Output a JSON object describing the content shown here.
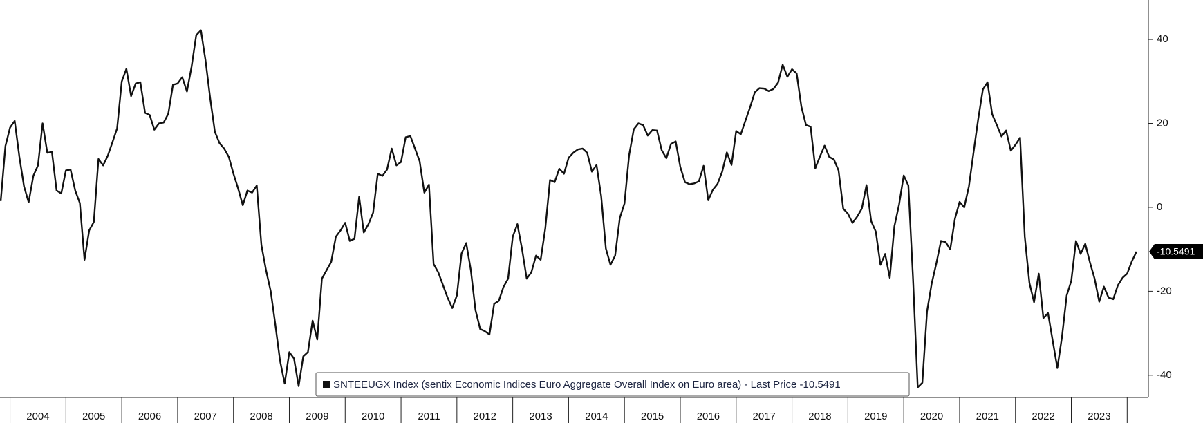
{
  "chart_data": {
    "type": "line",
    "x": [
      2003.833,
      2003.917,
      2004,
      2004.083,
      2004.167,
      2004.25,
      2004.333,
      2004.417,
      2004.5,
      2004.583,
      2004.667,
      2004.75,
      2004.833,
      2004.917,
      2005,
      2005.083,
      2005.167,
      2005.25,
      2005.333,
      2005.417,
      2005.5,
      2005.583,
      2005.667,
      2005.75,
      2005.833,
      2005.917,
      2006,
      2006.083,
      2006.167,
      2006.25,
      2006.333,
      2006.417,
      2006.5,
      2006.583,
      2006.667,
      2006.75,
      2006.833,
      2006.917,
      2007,
      2007.083,
      2007.167,
      2007.25,
      2007.333,
      2007.417,
      2007.5,
      2007.583,
      2007.667,
      2007.75,
      2007.833,
      2007.917,
      2008,
      2008.083,
      2008.167,
      2008.25,
      2008.333,
      2008.417,
      2008.5,
      2008.583,
      2008.667,
      2008.75,
      2008.833,
      2008.917,
      2009,
      2009.083,
      2009.167,
      2009.25,
      2009.333,
      2009.417,
      2009.5,
      2009.583,
      2009.667,
      2009.75,
      2009.833,
      2009.917,
      2010,
      2010.083,
      2010.167,
      2010.25,
      2010.333,
      2010.417,
      2010.5,
      2010.583,
      2010.667,
      2010.75,
      2010.833,
      2010.917,
      2011,
      2011.083,
      2011.167,
      2011.25,
      2011.333,
      2011.417,
      2011.5,
      2011.583,
      2011.667,
      2011.75,
      2011.833,
      2011.917,
      2012,
      2012.083,
      2012.167,
      2012.25,
      2012.333,
      2012.417,
      2012.5,
      2012.583,
      2012.667,
      2012.75,
      2012.833,
      2012.917,
      2013,
      2013.083,
      2013.167,
      2013.25,
      2013.333,
      2013.417,
      2013.5,
      2013.583,
      2013.667,
      2013.75,
      2013.833,
      2013.917,
      2014,
      2014.083,
      2014.167,
      2014.25,
      2014.333,
      2014.417,
      2014.5,
      2014.583,
      2014.667,
      2014.75,
      2014.833,
      2014.917,
      2015,
      2015.083,
      2015.167,
      2015.25,
      2015.333,
      2015.417,
      2015.5,
      2015.583,
      2015.667,
      2015.75,
      2015.833,
      2015.917,
      2016,
      2016.083,
      2016.167,
      2016.25,
      2016.333,
      2016.417,
      2016.5,
      2016.583,
      2016.667,
      2016.75,
      2016.833,
      2016.917,
      2017,
      2017.083,
      2017.167,
      2017.25,
      2017.333,
      2017.417,
      2017.5,
      2017.583,
      2017.667,
      2017.75,
      2017.833,
      2017.917,
      2018,
      2018.083,
      2018.167,
      2018.25,
      2018.333,
      2018.417,
      2018.5,
      2018.583,
      2018.667,
      2018.75,
      2018.833,
      2018.917,
      2019,
      2019.083,
      2019.167,
      2019.25,
      2019.333,
      2019.417,
      2019.5,
      2019.583,
      2019.667,
      2019.75,
      2019.833,
      2019.917,
      2020,
      2020.083,
      2020.167,
      2020.25,
      2020.333,
      2020.417,
      2020.5,
      2020.583,
      2020.667,
      2020.75,
      2020.833,
      2020.917,
      2021,
      2021.083,
      2021.167,
      2021.25,
      2021.333,
      2021.417,
      2021.5,
      2021.583,
      2021.667,
      2021.75,
      2021.833,
      2021.917,
      2022,
      2022.083,
      2022.167,
      2022.25,
      2022.333,
      2022.417,
      2022.5,
      2022.583,
      2022.667,
      2022.75,
      2022.833,
      2022.917,
      2023,
      2023.083,
      2023.167,
      2023.25,
      2023.333,
      2023.417,
      2023.5,
      2023.583,
      2023.667,
      2023.75,
      2023.833,
      2023.917,
      2024,
      2024.083,
      2024.167
    ],
    "series": [
      {
        "name": "SNTEEUGX Index (sentix Economic Indices Euro Aggregate  Overall Index on Euro area) - Last Price -10.5491",
        "color": "#111111",
        "values": [
          1.5,
          14.6,
          19,
          20.6,
          12,
          5,
          1.2,
          7.5,
          10,
          20,
          13,
          13.2,
          4,
          3.3,
          8.8,
          9,
          4,
          1,
          -12.5,
          -5.5,
          -3.5,
          11.5,
          10,
          12.3,
          15.5,
          18.8,
          30,
          33,
          26.5,
          29.5,
          29.8,
          22.5,
          22,
          18.5,
          20,
          20.2,
          22.3,
          29.2,
          29.5,
          31,
          27.6,
          33.5,
          41,
          42.2,
          35,
          26,
          18,
          15.3,
          14,
          12,
          8,
          4.5,
          0.5,
          4,
          3.5,
          5.2,
          -9,
          -15,
          -20,
          -28,
          -36.5,
          -42,
          -34.5,
          -36,
          -42.6,
          -35.5,
          -34.5,
          -27,
          -31.5,
          -17,
          -15,
          -13,
          -7,
          -5.5,
          -3.7,
          -8,
          -7.5,
          2.5,
          -6,
          -4,
          -1.3,
          8,
          7.5,
          9,
          14,
          10,
          10.8,
          16.7,
          17,
          14,
          11,
          3.5,
          5.4,
          -13.5,
          -15.5,
          -18.5,
          -21.5,
          -24,
          -21,
          -11,
          -8.5,
          -15,
          -24.5,
          -29,
          -29.5,
          -30.3,
          -23,
          -22.3,
          -19,
          -17,
          -7,
          -4,
          -10,
          -17,
          -15.5,
          -11.5,
          -12.5,
          -5,
          6.5,
          6,
          9.2,
          8,
          11.8,
          13,
          13.8,
          14,
          13,
          8.5,
          10.1,
          2.7,
          -9.8,
          -13.7,
          -11.5,
          -2.5,
          0.9,
          12.4,
          18.6,
          20,
          19.6,
          17.1,
          18.4,
          18.3,
          13.6,
          11.7,
          15.1,
          15.7,
          9.6,
          6,
          5.5,
          5.7,
          6.2,
          9.9,
          1.7,
          4.2,
          5.6,
          8.5,
          13.1,
          10.1,
          18.2,
          17.4,
          20.7,
          23.9,
          27.4,
          28.4,
          28.3,
          27.7,
          28.2,
          29.7,
          34,
          31.1,
          32.9,
          31.9,
          24,
          19.6,
          19.2,
          9.3,
          12.1,
          14.7,
          12,
          11.4,
          8.8,
          -0.3,
          -1.5,
          -3.7,
          -2.2,
          -0.3,
          5.3,
          -3.3,
          -5.8,
          -13.7,
          -11.1,
          -16.8,
          -4.5,
          0.7,
          7.6,
          5.2,
          -17.1,
          -42.9,
          -41.8,
          -24.8,
          -18.2,
          -13.4,
          -8,
          -8.3,
          -10,
          -2.7,
          1.3,
          0,
          5,
          13.1,
          21,
          28.1,
          29.8,
          22.2,
          19.6,
          16.9,
          18.3,
          13.5,
          14.9,
          16.6,
          -7,
          -18,
          -22.6,
          -15.8,
          -26.4,
          -25.2,
          -31.8,
          -38.3,
          -30.9,
          -21,
          -17.5,
          -8,
          -11.1,
          -8.7,
          -13.1,
          -17,
          -22.5,
          -18.9,
          -21.5,
          -21.9,
          -18.6,
          -16.8,
          -15.8,
          -12.9,
          -10.5491
        ]
      }
    ],
    "xlim": [
      2003.82,
      2024.38
    ],
    "xticks": [
      2004,
      2005,
      2006,
      2007,
      2008,
      2009,
      2010,
      2011,
      2012,
      2013,
      2014,
      2015,
      2016,
      2017,
      2018,
      2019,
      2020,
      2021,
      2022,
      2023
    ],
    "ylim": [
      -45.3,
      49.4
    ],
    "yticks": [
      -40,
      -20,
      0,
      20,
      40
    ],
    "y_axis_side": "right",
    "grid": false
  }
}
